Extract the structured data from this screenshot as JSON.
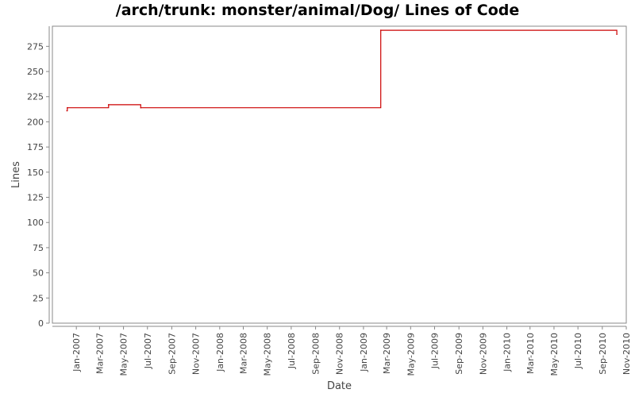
{
  "chart_data": {
    "type": "line",
    "title": "/arch/trunk: monster/animal/Dog/ Lines of Code",
    "xlabel": "Date",
    "ylabel": "Lines",
    "ylim": [
      0,
      295
    ],
    "xlim": [
      "2006-11-01",
      "2010-11-01"
    ],
    "y_ticks": [
      0,
      25,
      50,
      75,
      100,
      125,
      150,
      175,
      200,
      225,
      250,
      275
    ],
    "x_ticks": [
      {
        "label": "Jan-2007",
        "date": "2007-01-01"
      },
      {
        "label": "Mar-2007",
        "date": "2007-03-01"
      },
      {
        "label": "May-2007",
        "date": "2007-05-01"
      },
      {
        "label": "Jul-2007",
        "date": "2007-07-01"
      },
      {
        "label": "Sep-2007",
        "date": "2007-09-01"
      },
      {
        "label": "Nov-2007",
        "date": "2007-11-01"
      },
      {
        "label": "Jan-2008",
        "date": "2008-01-01"
      },
      {
        "label": "Mar-2008",
        "date": "2008-03-01"
      },
      {
        "label": "May-2008",
        "date": "2008-05-01"
      },
      {
        "label": "Jul-2008",
        "date": "2008-07-01"
      },
      {
        "label": "Sep-2008",
        "date": "2008-09-01"
      },
      {
        "label": "Nov-2008",
        "date": "2008-11-01"
      },
      {
        "label": "Jan-2009",
        "date": "2009-01-01"
      },
      {
        "label": "Mar-2009",
        "date": "2009-03-01"
      },
      {
        "label": "May-2009",
        "date": "2009-05-01"
      },
      {
        "label": "Jul-2009",
        "date": "2009-07-01"
      },
      {
        "label": "Sep-2009",
        "date": "2009-09-01"
      },
      {
        "label": "Nov-2009",
        "date": "2009-11-01"
      },
      {
        "label": "Jan-2010",
        "date": "2010-01-01"
      },
      {
        "label": "Mar-2010",
        "date": "2010-03-01"
      },
      {
        "label": "May-2010",
        "date": "2010-05-01"
      },
      {
        "label": "Jul-2010",
        "date": "2010-07-01"
      },
      {
        "label": "Sep-2010",
        "date": "2010-09-01"
      },
      {
        "label": "Nov-2010",
        "date": "2010-11-01"
      }
    ],
    "step": true,
    "grid": false,
    "legend": "none",
    "series": [
      {
        "color": "#cc0000",
        "points": [
          [
            "2006-12-08",
            211
          ],
          [
            "2006-12-09",
            214
          ],
          [
            "2007-03-24",
            217
          ],
          [
            "2007-06-14",
            214
          ],
          [
            "2009-02-14",
            291
          ],
          [
            "2010-10-08",
            287
          ]
        ]
      }
    ]
  }
}
